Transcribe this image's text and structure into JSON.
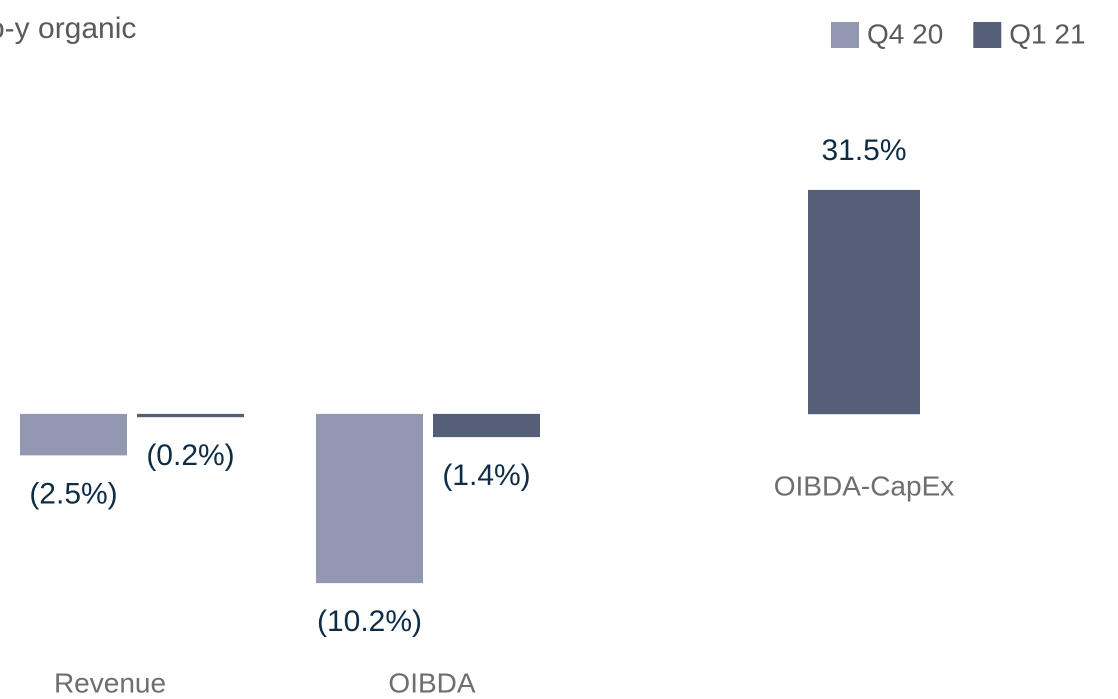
{
  "chart_data": [
    {
      "type": "bar",
      "title": "o-y organic",
      "categories": [
        "Revenue",
        "OIBDA"
      ],
      "series": [
        {
          "name": "Q4 20",
          "color": "#9298b0",
          "values": [
            -2.5,
            -10.2
          ],
          "value_labels": [
            "(2.5%)",
            "(10.2%)"
          ]
        },
        {
          "name": "Q1 21",
          "color": "#565f78",
          "values": [
            -0.2,
            -1.4
          ],
          "value_labels": [
            "(0.2%)",
            "(1.4%)"
          ]
        }
      ],
      "ylim": [
        -12,
        15
      ]
    },
    {
      "type": "bar",
      "categories": [
        "OIBDA-CapEx"
      ],
      "values": [
        31.5
      ],
      "value_labels": [
        "31.5%"
      ],
      "color": "#565f78",
      "ylim": [
        -15,
        35
      ]
    }
  ]
}
